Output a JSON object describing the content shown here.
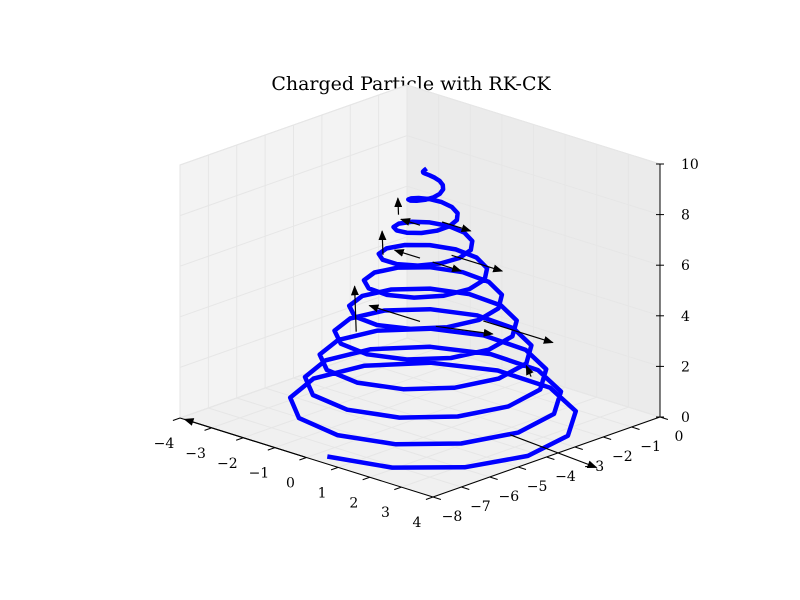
{
  "chart_data": {
    "type": "line",
    "title": "Charged Particle with RK-CK",
    "projection": "3d",
    "grid": true,
    "xlabel": "",
    "ylabel": "",
    "zlabel": "",
    "xlim": [
      -4,
      4
    ],
    "ylim": [
      -8,
      0
    ],
    "zlim": [
      0,
      10
    ],
    "x_ticks": [
      "−4",
      "−3",
      "−2",
      "−1",
      "0",
      "1",
      "2",
      "3",
      "4"
    ],
    "y_ticks": [
      "−8",
      "−7",
      "−6",
      "−5",
      "−4",
      "−3",
      "−2",
      "−1",
      "0"
    ],
    "z_ticks": [
      "0",
      "2",
      "4",
      "6",
      "8",
      "10"
    ],
    "series": [
      {
        "kind": "trajectory",
        "color": "#0000ff",
        "description_free": true,
        "turns": 10,
        "radius_start": 3.6,
        "radius_end": 0.1,
        "center_x": 0.3,
        "center_y": -4,
        "z_start": 0,
        "z_end": 10
      }
    ],
    "vectors": [
      {
        "x": 0.3,
        "y": -8.4,
        "z": 0.3,
        "u": -3.8,
        "v": 0,
        "w": 0
      },
      {
        "x": 3.3,
        "y": -4.5,
        "z": 0.8,
        "u": 3.0,
        "v": -0.3,
        "w": 0
      },
      {
        "x": 1.0,
        "y": -1.2,
        "z": 0.9,
        "u": -0.6,
        "v": 0.5,
        "w": 0
      },
      {
        "x": -1.3,
        "y": -4.8,
        "z": 3.2,
        "u": -0.5,
        "v": 0.5,
        "w": 1.4
      },
      {
        "x": 0.0,
        "y": -4.0,
        "z": 3.8,
        "u": -1.6,
        "v": 0,
        "w": 0
      },
      {
        "x": 0.5,
        "y": -4.0,
        "z": 3.8,
        "u": 1.8,
        "v": 0,
        "w": 0.4
      },
      {
        "x": 2.0,
        "y": -4.0,
        "z": 4.6,
        "u": 2.2,
        "v": 0,
        "w": 0
      },
      {
        "x": -0.9,
        "y": -4.3,
        "z": 6.2,
        "u": -0.3,
        "v": 0.3,
        "w": 0.7
      },
      {
        "x": 0.0,
        "y": -4.0,
        "z": 6.3,
        "u": -0.8,
        "v": 0,
        "w": 0
      },
      {
        "x": 0.4,
        "y": -4.0,
        "z": 6.3,
        "u": 0.9,
        "v": 0,
        "w": 0
      },
      {
        "x": 1.0,
        "y": -4.0,
        "z": 6.8,
        "u": 1.6,
        "v": 0,
        "w": 0
      },
      {
        "x": -0.5,
        "y": -4.2,
        "z": 7.9,
        "u": -0.2,
        "v": 0.2,
        "w": 0.5
      },
      {
        "x": 0.0,
        "y": -4.0,
        "z": 7.6,
        "u": -0.6,
        "v": 0,
        "w": 0
      },
      {
        "x": 0.7,
        "y": -4.0,
        "z": 8.0,
        "u": 0.9,
        "v": 0,
        "w": 0
      }
    ]
  }
}
